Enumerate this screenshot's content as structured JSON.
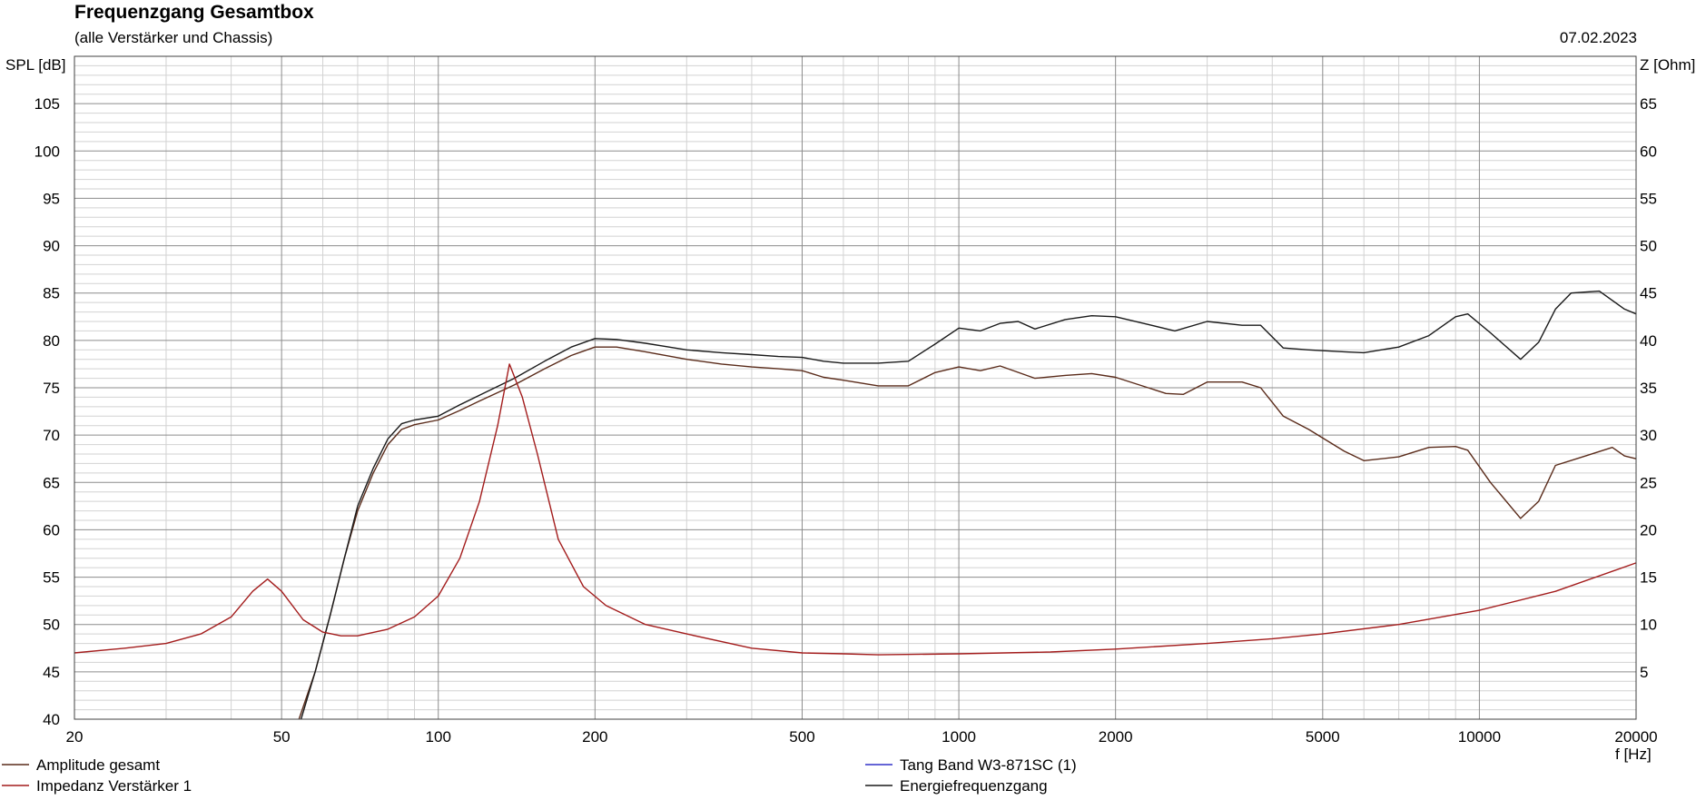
{
  "header": {
    "title": "Frequenzgang Gesamtbox",
    "subtitle": "(alle Verstärker und Chassis)",
    "date": "07.02.2023"
  },
  "chart_data": {
    "type": "line",
    "xscale": "log",
    "xlim": [
      20,
      20000
    ],
    "ylim": [
      40,
      110
    ],
    "y2lim": [
      0,
      70
    ],
    "xlabel": "f [Hz]",
    "ylabel": "SPL [dB]",
    "y2label": "Z [Ohm]",
    "x_ticks": [
      20,
      50,
      100,
      200,
      500,
      1000,
      2000,
      5000,
      10000,
      20000
    ],
    "x_tick_labels": [
      "20",
      "50",
      "100",
      "200",
      "500",
      "1000",
      "2000",
      "5000",
      "10000",
      "20000"
    ],
    "y_ticks": [
      40,
      45,
      50,
      55,
      60,
      65,
      70,
      75,
      80,
      85,
      90,
      95,
      100,
      105
    ],
    "y_tick_labels": [
      "40",
      "45",
      "50",
      "55",
      "60",
      "65",
      "70",
      "75",
      "80",
      "85",
      "90",
      "95",
      "100",
      "105"
    ],
    "y2_ticks": [
      5,
      10,
      15,
      20,
      25,
      30,
      35,
      40,
      45,
      50,
      55,
      60,
      65
    ],
    "y2_tick_labels": [
      "5",
      "10",
      "15",
      "20",
      "25",
      "30",
      "35",
      "40",
      "45",
      "50",
      "55",
      "60",
      "65"
    ],
    "grid": true,
    "legend": "bottom",
    "series": [
      {
        "name": "Amplitude gesamt",
        "axis": "left",
        "color": "#5a2b1a",
        "points": [
          [
            54,
            40
          ],
          [
            58,
            45
          ],
          [
            62,
            51
          ],
          [
            66,
            57
          ],
          [
            70,
            62
          ],
          [
            75,
            66
          ],
          [
            80,
            69
          ],
          [
            85,
            70.6
          ],
          [
            90,
            71.1
          ],
          [
            100,
            71.6
          ],
          [
            110,
            72.6
          ],
          [
            120,
            73.6
          ],
          [
            140,
            75.3
          ],
          [
            160,
            77
          ],
          [
            180,
            78.4
          ],
          [
            200,
            79.3
          ],
          [
            220,
            79.3
          ],
          [
            250,
            78.8
          ],
          [
            300,
            78
          ],
          [
            350,
            77.5
          ],
          [
            400,
            77.2
          ],
          [
            450,
            77
          ],
          [
            500,
            76.8
          ],
          [
            550,
            76.1
          ],
          [
            600,
            75.8
          ],
          [
            700,
            75.2
          ],
          [
            800,
            75.2
          ],
          [
            900,
            76.6
          ],
          [
            1000,
            77.2
          ],
          [
            1100,
            76.8
          ],
          [
            1200,
            77.3
          ],
          [
            1400,
            76
          ],
          [
            1600,
            76.3
          ],
          [
            1800,
            76.5
          ],
          [
            2000,
            76.1
          ],
          [
            2500,
            74.4
          ],
          [
            2700,
            74.3
          ],
          [
            3000,
            75.6
          ],
          [
            3500,
            75.6
          ],
          [
            3800,
            75
          ],
          [
            4200,
            72
          ],
          [
            4700,
            70.6
          ],
          [
            5500,
            68.3
          ],
          [
            6000,
            67.3
          ],
          [
            7000,
            67.7
          ],
          [
            8000,
            68.7
          ],
          [
            9000,
            68.8
          ],
          [
            9500,
            68.4
          ],
          [
            10500,
            65
          ],
          [
            12000,
            61.2
          ],
          [
            13000,
            63
          ],
          [
            14000,
            66.8
          ],
          [
            16000,
            67.8
          ],
          [
            18000,
            68.7
          ],
          [
            19000,
            67.8
          ],
          [
            20000,
            67.5
          ]
        ]
      },
      {
        "name": "Energiefrequenzgang",
        "axis": "left",
        "color": "#1a1a1a",
        "points": [
          [
            54.5,
            40
          ],
          [
            58,
            45
          ],
          [
            62,
            51
          ],
          [
            66,
            57
          ],
          [
            70,
            62.5
          ],
          [
            75,
            66.5
          ],
          [
            80,
            69.6
          ],
          [
            85,
            71.2
          ],
          [
            90,
            71.6
          ],
          [
            100,
            72
          ],
          [
            110,
            73.2
          ],
          [
            120,
            74.2
          ],
          [
            140,
            76
          ],
          [
            160,
            77.8
          ],
          [
            180,
            79.3
          ],
          [
            200,
            80.2
          ],
          [
            220,
            80.1
          ],
          [
            250,
            79.7
          ],
          [
            300,
            79
          ],
          [
            350,
            78.7
          ],
          [
            400,
            78.5
          ],
          [
            450,
            78.3
          ],
          [
            500,
            78.2
          ],
          [
            550,
            77.8
          ],
          [
            600,
            77.6
          ],
          [
            700,
            77.6
          ],
          [
            800,
            77.8
          ],
          [
            900,
            79.6
          ],
          [
            1000,
            81.3
          ],
          [
            1100,
            81
          ],
          [
            1200,
            81.8
          ],
          [
            1300,
            82
          ],
          [
            1400,
            81.2
          ],
          [
            1600,
            82.2
          ],
          [
            1800,
            82.6
          ],
          [
            2000,
            82.5
          ],
          [
            2300,
            81.7
          ],
          [
            2600,
            81
          ],
          [
            3000,
            82
          ],
          [
            3500,
            81.6
          ],
          [
            3800,
            81.6
          ],
          [
            4200,
            79.2
          ],
          [
            4700,
            79
          ],
          [
            5500,
            78.8
          ],
          [
            6000,
            78.7
          ],
          [
            7000,
            79.3
          ],
          [
            8000,
            80.5
          ],
          [
            9000,
            82.5
          ],
          [
            9500,
            82.8
          ],
          [
            10500,
            80.8
          ],
          [
            12000,
            78
          ],
          [
            13000,
            79.8
          ],
          [
            14000,
            83.3
          ],
          [
            15000,
            85
          ],
          [
            17000,
            85.2
          ],
          [
            19000,
            83.3
          ],
          [
            20000,
            82.8
          ]
        ]
      },
      {
        "name": "Impedanz Verstärker 1",
        "axis": "right",
        "color": "#a31c1c",
        "points": [
          [
            20,
            7
          ],
          [
            25,
            7.5
          ],
          [
            30,
            8
          ],
          [
            35,
            9
          ],
          [
            40,
            10.8
          ],
          [
            44,
            13.5
          ],
          [
            47,
            14.8
          ],
          [
            50,
            13.5
          ],
          [
            55,
            10.5
          ],
          [
            60,
            9.2
          ],
          [
            65,
            8.8
          ],
          [
            70,
            8.8
          ],
          [
            80,
            9.5
          ],
          [
            90,
            10.8
          ],
          [
            100,
            13
          ],
          [
            110,
            17
          ],
          [
            120,
            23
          ],
          [
            130,
            31
          ],
          [
            137,
            37.5
          ],
          [
            145,
            34
          ],
          [
            155,
            28
          ],
          [
            170,
            19
          ],
          [
            190,
            14
          ],
          [
            210,
            12
          ],
          [
            250,
            10
          ],
          [
            300,
            9
          ],
          [
            400,
            7.5
          ],
          [
            500,
            7
          ],
          [
            600,
            6.9
          ],
          [
            700,
            6.8
          ],
          [
            1000,
            6.9
          ],
          [
            1500,
            7.1
          ],
          [
            2000,
            7.4
          ],
          [
            3000,
            8
          ],
          [
            4000,
            8.5
          ],
          [
            5000,
            9
          ],
          [
            7000,
            10
          ],
          [
            10000,
            11.5
          ],
          [
            14000,
            13.5
          ],
          [
            20000,
            16.5
          ]
        ]
      }
    ],
    "legend_items": [
      {
        "label": "Amplitude gesamt",
        "color": "#5a2b1a"
      },
      {
        "label": "Impedanz Verstärker 1",
        "color": "#a31c1c"
      },
      {
        "label": "Tang Band W3-871SC (1)",
        "color": "#3232c8"
      },
      {
        "label": "Energiefrequenzgang",
        "color": "#1a1a1a"
      }
    ],
    "grid_colors": {
      "major": "#8c8c8c",
      "minor": "#d2d2d2",
      "frame": "#404040"
    }
  }
}
